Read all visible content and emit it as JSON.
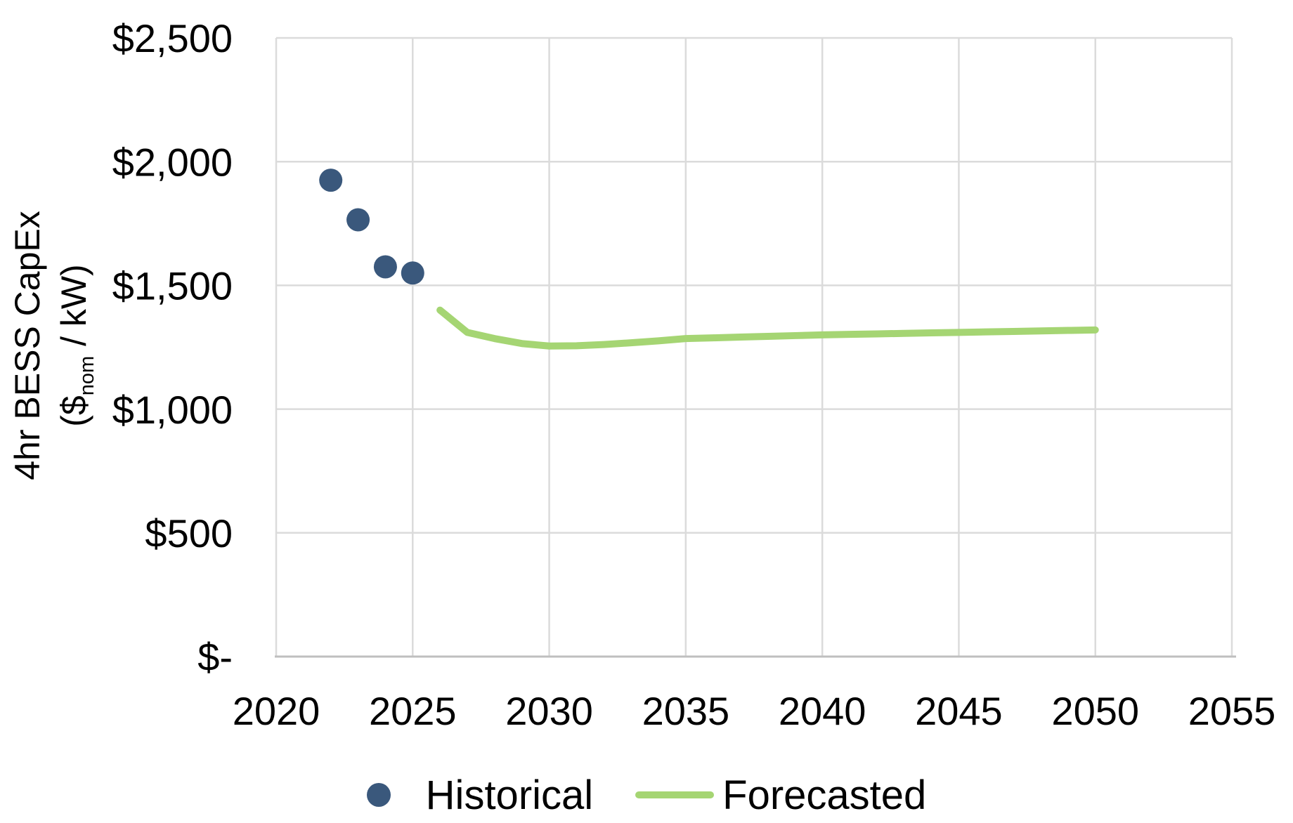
{
  "chart_data": {
    "type": "combo",
    "title": "",
    "x_axis": {
      "min": 2020,
      "max": 2055,
      "ticks": [
        {
          "value": 2020,
          "label": "2020"
        },
        {
          "value": 2025,
          "label": "2025"
        },
        {
          "value": 2030,
          "label": "2030"
        },
        {
          "value": 2035,
          "label": "2035"
        },
        {
          "value": 2040,
          "label": "2040"
        },
        {
          "value": 2045,
          "label": "2045"
        },
        {
          "value": 2050,
          "label": "2050"
        },
        {
          "value": 2055,
          "label": "2055"
        }
      ]
    },
    "y_axis": {
      "min": 0,
      "max": 2500,
      "title": {
        "line1": "4hr BESS CapEx",
        "line2_open": "($",
        "line2_sub": "nom",
        "line2_close": " / kW)"
      },
      "ticks": [
        {
          "value": 2500,
          "label": "$2,500"
        },
        {
          "value": 2000,
          "label": "$2,000"
        },
        {
          "value": 1500,
          "label": "$1,500"
        },
        {
          "value": 1000,
          "label": "$1,000"
        },
        {
          "value": 500,
          "label": "$500"
        },
        {
          "value": 0,
          "label": "$-"
        }
      ]
    },
    "grid": true,
    "legend_position": "bottom",
    "colors": {
      "gridline": "#DBDBDB",
      "axis_line": "#BFBFBF",
      "text": "#000000",
      "historical": "#3A587C",
      "forecasted": "#A5D573"
    },
    "series": [
      {
        "name": "Historical",
        "type": "scatter",
        "marker": "circle",
        "color": "#3A587C",
        "points": [
          {
            "x": 2022,
            "y": 1925
          },
          {
            "x": 2023,
            "y": 1765
          },
          {
            "x": 2024,
            "y": 1575
          },
          {
            "x": 2025,
            "y": 1550
          }
        ]
      },
      {
        "name": "Forecasted",
        "type": "line",
        "color": "#A5D573",
        "points": [
          {
            "x": 2026,
            "y": 1400
          },
          {
            "x": 2027,
            "y": 1310
          },
          {
            "x": 2028,
            "y": 1285
          },
          {
            "x": 2029,
            "y": 1265
          },
          {
            "x": 2030,
            "y": 1255
          },
          {
            "x": 2031,
            "y": 1256
          },
          {
            "x": 2032,
            "y": 1261
          },
          {
            "x": 2033,
            "y": 1268
          },
          {
            "x": 2034,
            "y": 1276
          },
          {
            "x": 2035,
            "y": 1285
          },
          {
            "x": 2036,
            "y": 1288
          },
          {
            "x": 2037,
            "y": 1291
          },
          {
            "x": 2038,
            "y": 1294
          },
          {
            "x": 2039,
            "y": 1297
          },
          {
            "x": 2040,
            "y": 1300
          },
          {
            "x": 2041,
            "y": 1302
          },
          {
            "x": 2042,
            "y": 1304
          },
          {
            "x": 2043,
            "y": 1306
          },
          {
            "x": 2044,
            "y": 1308
          },
          {
            "x": 2045,
            "y": 1310
          },
          {
            "x": 2046,
            "y": 1312
          },
          {
            "x": 2047,
            "y": 1314
          },
          {
            "x": 2048,
            "y": 1316
          },
          {
            "x": 2049,
            "y": 1318
          },
          {
            "x": 2050,
            "y": 1320
          }
        ]
      }
    ]
  }
}
